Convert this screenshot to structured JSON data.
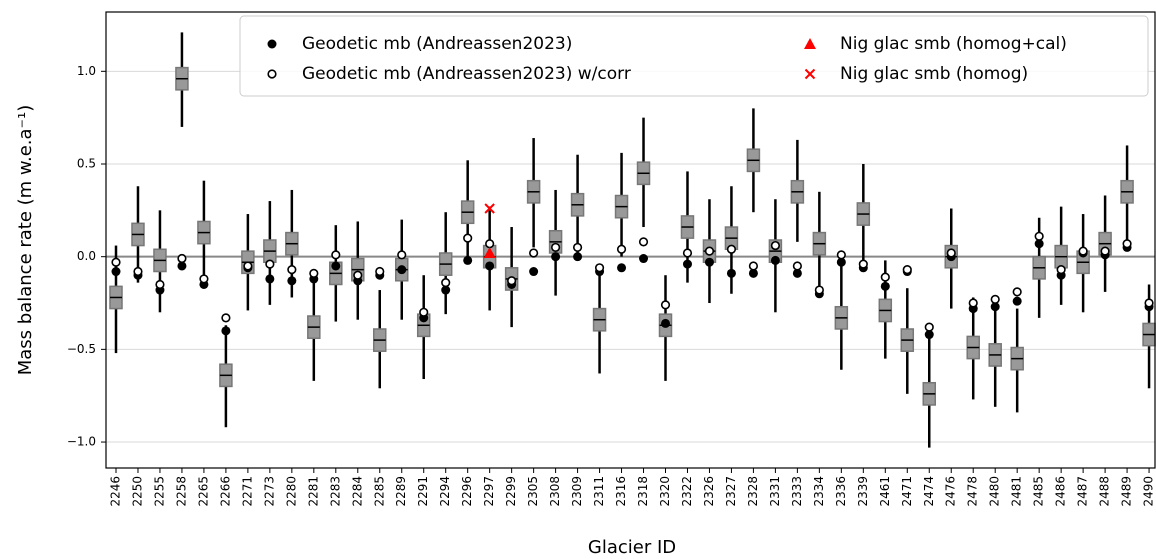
{
  "chart_data": {
    "type": "box",
    "x_label": "Glacier ID",
    "y_label": "Mass balance rate (m w.e.a⁻¹)",
    "categories": [
      "2246",
      "2250",
      "2255",
      "2258",
      "2265",
      "2266",
      "2271",
      "2273",
      "2280",
      "2281",
      "2283",
      "2284",
      "2285",
      "2289",
      "2291",
      "2294",
      "2296",
      "2297",
      "2299",
      "2305",
      "2308",
      "2309",
      "2311",
      "2316",
      "2318",
      "2320",
      "2322",
      "2326",
      "2327",
      "2328",
      "2331",
      "2333",
      "2334",
      "2336",
      "2339",
      "2461",
      "2471",
      "2474",
      "2476",
      "2478",
      "2480",
      "2481",
      "2485",
      "2486",
      "2487",
      "2488",
      "2489",
      "2490"
    ],
    "boxes": {
      "color": "#999999",
      "edge_color": "#777777",
      "median": [
        -0.22,
        0.12,
        -0.02,
        0.96,
        0.13,
        -0.64,
        -0.03,
        0.03,
        0.07,
        -0.38,
        -0.09,
        -0.07,
        -0.45,
        -0.07,
        -0.37,
        -0.04,
        0.24,
        0.0,
        -0.12,
        0.35,
        0.08,
        0.28,
        -0.34,
        0.27,
        0.45,
        -0.37,
        0.16,
        0.03,
        0.1,
        0.52,
        0.03,
        0.35,
        0.07,
        -0.33,
        0.23,
        -0.29,
        -0.45,
        -0.74,
        0.0,
        -0.49,
        -0.53,
        -0.55,
        -0.06,
        0.0,
        -0.03,
        0.07,
        0.35,
        -0.42
      ],
      "q1": [
        -0.28,
        0.06,
        -0.08,
        0.9,
        0.07,
        -0.7,
        -0.09,
        -0.03,
        0.01,
        -0.44,
        -0.15,
        -0.13,
        -0.51,
        -0.13,
        -0.43,
        -0.1,
        0.18,
        -0.06,
        -0.18,
        0.29,
        0.02,
        0.22,
        -0.4,
        0.21,
        0.39,
        -0.43,
        0.1,
        -0.03,
        0.04,
        0.46,
        -0.03,
        0.29,
        0.01,
        -0.39,
        0.17,
        -0.35,
        -0.51,
        -0.8,
        -0.06,
        -0.55,
        -0.59,
        -0.61,
        -0.12,
        -0.06,
        -0.09,
        0.01,
        0.29,
        -0.48
      ],
      "q3": [
        -0.16,
        0.18,
        0.04,
        1.02,
        0.19,
        -0.58,
        0.03,
        0.09,
        0.13,
        -0.32,
        -0.03,
        -0.01,
        -0.39,
        -0.01,
        -0.31,
        0.02,
        0.3,
        0.06,
        -0.06,
        0.41,
        0.14,
        0.34,
        -0.28,
        0.33,
        0.51,
        -0.31,
        0.22,
        0.09,
        0.16,
        0.58,
        0.09,
        0.41,
        0.13,
        -0.27,
        0.29,
        -0.23,
        -0.39,
        -0.68,
        0.06,
        -0.43,
        -0.47,
        -0.49,
        0.0,
        0.06,
        0.03,
        0.13,
        0.41,
        -0.36
      ],
      "whislo": [
        -0.52,
        -0.14,
        -0.3,
        0.7,
        -0.14,
        -0.92,
        -0.29,
        -0.26,
        -0.22,
        -0.67,
        -0.35,
        -0.34,
        -0.71,
        -0.34,
        -0.66,
        -0.31,
        -0.02,
        -0.29,
        -0.38,
        0.05,
        -0.21,
        0.0,
        -0.63,
        0.0,
        0.16,
        -0.67,
        -0.14,
        -0.25,
        -0.2,
        0.24,
        -0.3,
        0.08,
        -0.2,
        -0.61,
        -0.03,
        -0.55,
        -0.74,
        -1.03,
        -0.28,
        -0.77,
        -0.81,
        -0.84,
        -0.33,
        -0.26,
        -0.3,
        -0.19,
        0.08,
        -0.71
      ],
      "whishi": [
        0.06,
        0.38,
        0.25,
        1.21,
        0.41,
        -0.37,
        0.23,
        0.3,
        0.36,
        -0.1,
        0.17,
        0.19,
        -0.18,
        0.2,
        -0.1,
        0.24,
        0.52,
        0.27,
        0.16,
        0.64,
        0.36,
        0.55,
        -0.06,
        0.56,
        0.75,
        -0.1,
        0.46,
        0.31,
        0.38,
        0.8,
        0.31,
        0.63,
        0.35,
        -0.03,
        0.5,
        -0.02,
        -0.17,
        -0.43,
        0.26,
        -0.22,
        -0.23,
        -0.28,
        0.21,
        0.27,
        0.23,
        0.33,
        0.6,
        -0.15
      ]
    },
    "series": [
      {
        "name": "Geodetic mb (Andreassen2023)",
        "color": "#000000",
        "marker": "filled-circle",
        "values": [
          -0.08,
          -0.1,
          -0.18,
          -0.05,
          -0.15,
          -0.4,
          -0.06,
          -0.12,
          -0.13,
          -0.12,
          -0.05,
          -0.13,
          -0.1,
          -0.07,
          -0.33,
          -0.18,
          -0.02,
          -0.05,
          -0.15,
          -0.08,
          0.0,
          0.0,
          -0.08,
          -0.06,
          -0.01,
          -0.36,
          -0.04,
          -0.03,
          -0.09,
          -0.09,
          -0.02,
          -0.09,
          -0.2,
          -0.03,
          -0.06,
          -0.16,
          -0.08,
          -0.42,
          0.0,
          -0.28,
          -0.27,
          -0.24,
          0.07,
          -0.1,
          0.02,
          0.01,
          0.05,
          -0.27
        ]
      },
      {
        "name": "Geodetic mb (Andreassen2023) w/corr",
        "color": "#000000",
        "marker": "open-circle",
        "values": [
          -0.03,
          -0.08,
          -0.15,
          -0.01,
          -0.12,
          -0.33,
          -0.05,
          -0.04,
          -0.07,
          -0.09,
          0.01,
          -0.1,
          -0.08,
          0.01,
          -0.3,
          -0.14,
          0.1,
          0.07,
          -0.13,
          0.02,
          0.05,
          0.05,
          -0.06,
          0.04,
          0.08,
          -0.26,
          0.02,
          0.03,
          0.04,
          -0.05,
          0.06,
          -0.05,
          -0.18,
          0.01,
          -0.04,
          -0.11,
          -0.07,
          -0.38,
          0.02,
          -0.25,
          -0.23,
          -0.19,
          0.11,
          -0.07,
          0.03,
          0.03,
          0.07,
          -0.25
        ]
      },
      {
        "name": "Nig glac smb (homog+cal)",
        "color": "#ff0000",
        "marker": "triangle",
        "values": [
          null,
          null,
          null,
          null,
          null,
          null,
          null,
          null,
          null,
          null,
          null,
          null,
          null,
          null,
          null,
          null,
          null,
          0.02,
          null,
          null,
          null,
          null,
          null,
          null,
          null,
          null,
          null,
          null,
          null,
          null,
          null,
          null,
          null,
          null,
          null,
          null,
          null,
          null,
          null,
          null,
          null,
          null,
          null,
          null,
          null,
          null,
          null,
          null
        ]
      },
      {
        "name": "Nig glac smb (homog)",
        "color": "#ff0000",
        "marker": "cross",
        "values": [
          null,
          null,
          null,
          null,
          null,
          null,
          null,
          null,
          null,
          null,
          null,
          null,
          null,
          null,
          null,
          null,
          null,
          0.26,
          null,
          null,
          null,
          null,
          null,
          null,
          null,
          null,
          null,
          null,
          null,
          null,
          null,
          null,
          null,
          null,
          null,
          null,
          null,
          null,
          null,
          null,
          null,
          null,
          null,
          null,
          null,
          null,
          null,
          null
        ]
      }
    ],
    "reference_line": 0,
    "ylim": [
      -1.14,
      1.32
    ],
    "yticks": [
      {
        "value": -1.0,
        "label": "−1.0"
      },
      {
        "value": -0.5,
        "label": "−0.5"
      },
      {
        "value": 0.0,
        "label": "0.0"
      },
      0.5,
      {
        "value": 1.0,
        "label": "1.0"
      }
    ],
    "grid": true
  }
}
